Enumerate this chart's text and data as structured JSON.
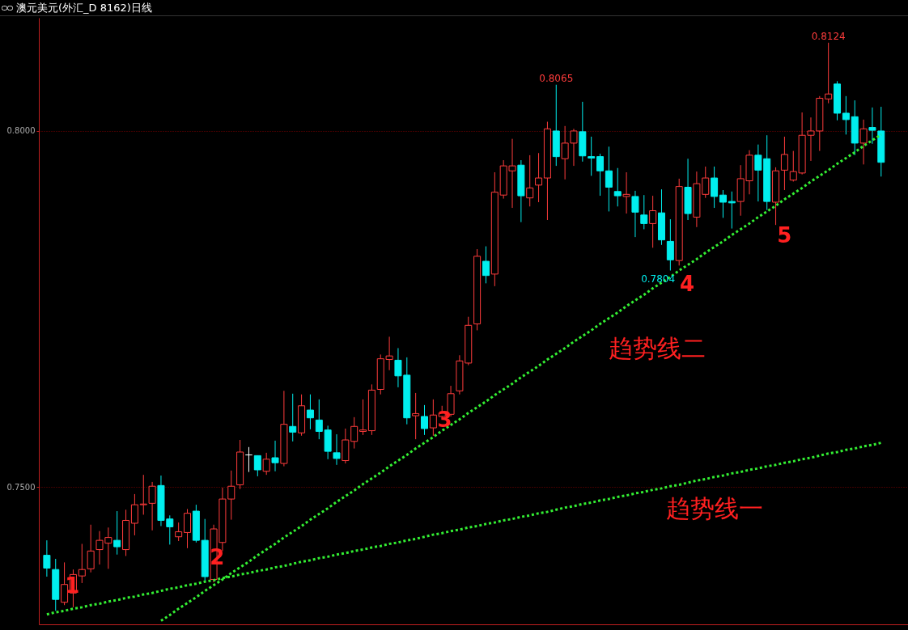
{
  "chart_data": {
    "type": "candlestick",
    "title": "澳元美元(外汇_D 8162)日线",
    "categories": [
      null,
      null,
      null,
      null,
      null,
      null,
      null,
      null,
      null,
      null,
      null,
      null,
      null,
      null,
      null,
      null,
      null,
      null,
      null,
      null,
      null,
      null,
      null,
      null,
      null,
      null,
      null,
      null,
      null,
      null,
      null,
      null,
      null,
      null,
      null,
      null,
      null,
      null,
      null,
      null,
      null,
      null,
      null,
      null,
      null,
      null,
      null,
      null,
      null,
      null,
      null,
      null,
      null,
      null,
      null,
      null,
      null,
      null,
      null,
      null,
      null,
      null,
      null,
      null,
      null,
      null,
      null,
      null,
      null,
      null,
      null,
      null,
      null,
      null,
      null,
      null,
      null,
      null,
      null,
      null,
      null,
      null,
      null,
      null,
      null,
      null,
      null,
      null,
      null,
      null,
      null,
      null,
      null,
      null,
      null,
      null
    ],
    "ohlc": [
      [
        0.7404,
        0.7425,
        0.7374,
        0.7386
      ],
      [
        0.7384,
        0.7399,
        0.7326,
        0.7342
      ],
      [
        0.7338,
        0.7394,
        0.7334,
        0.7363
      ],
      [
        0.7351,
        0.7384,
        0.7331,
        0.7377
      ],
      [
        0.7375,
        0.742,
        0.7365,
        0.7384
      ],
      [
        0.7385,
        0.7447,
        0.738,
        0.741
      ],
      [
        0.7412,
        0.7438,
        0.7391,
        0.7425
      ],
      [
        0.7421,
        0.7443,
        0.7385,
        0.7429
      ],
      [
        0.7425,
        0.7466,
        0.7405,
        0.7416
      ],
      [
        0.7412,
        0.7468,
        0.7403,
        0.7453
      ],
      [
        0.7449,
        0.749,
        0.7432,
        0.7475
      ],
      [
        0.7475,
        0.7517,
        0.7461,
        0.7476
      ],
      [
        0.7477,
        0.7507,
        0.7439,
        0.7501
      ],
      [
        0.7502,
        0.7516,
        0.7445,
        0.7453
      ],
      [
        0.7455,
        0.746,
        0.7419,
        0.7444
      ],
      [
        0.743,
        0.745,
        0.7424,
        0.7437
      ],
      [
        0.7436,
        0.7469,
        0.7414,
        0.7463
      ],
      [
        0.7466,
        0.7475,
        0.7422,
        0.7425
      ],
      [
        0.7425,
        0.7455,
        0.7368,
        0.7374
      ],
      [
        0.737,
        0.7447,
        0.7366,
        0.7441
      ],
      [
        0.7422,
        0.7499,
        0.741,
        0.7483
      ],
      [
        0.7483,
        0.7523,
        0.7454,
        0.7501
      ],
      [
        0.7503,
        0.7566,
        0.7497,
        0.7549
      ],
      [
        0.7545,
        0.7556,
        0.7521,
        0.7545
      ],
      [
        0.7544,
        0.7544,
        0.7515,
        0.7524
      ],
      [
        0.7522,
        0.7548,
        0.7517,
        0.7539
      ],
      [
        0.7541,
        0.7565,
        0.7522,
        0.7534
      ],
      [
        0.7533,
        0.7635,
        0.7529,
        0.7588
      ],
      [
        0.7585,
        0.7631,
        0.7564,
        0.7577
      ],
      [
        0.7576,
        0.763,
        0.7572,
        0.7614
      ],
      [
        0.7608,
        0.763,
        0.7581,
        0.7597
      ],
      [
        0.7594,
        0.7623,
        0.7567,
        0.7578
      ],
      [
        0.758,
        0.7586,
        0.7539,
        0.755
      ],
      [
        0.7548,
        0.7574,
        0.7531,
        0.754
      ],
      [
        0.7537,
        0.7582,
        0.7533,
        0.7566
      ],
      [
        0.7564,
        0.7598,
        0.7554,
        0.7585
      ],
      [
        0.7578,
        0.7623,
        0.7573,
        0.758
      ],
      [
        0.7579,
        0.7644,
        0.7573,
        0.7636
      ],
      [
        0.7637,
        0.7686,
        0.763,
        0.768
      ],
      [
        0.7679,
        0.7711,
        0.7664,
        0.7684
      ],
      [
        0.7678,
        0.7695,
        0.764,
        0.7656
      ],
      [
        0.7657,
        0.7682,
        0.7588,
        0.7597
      ],
      [
        0.76,
        0.7632,
        0.7567,
        0.7603
      ],
      [
        0.7599,
        0.7615,
        0.7573,
        0.7582
      ],
      [
        0.7583,
        0.7623,
        0.7572,
        0.7601
      ],
      [
        0.7599,
        0.7614,
        0.7595,
        0.7604
      ],
      [
        0.7602,
        0.7642,
        0.7599,
        0.7631
      ],
      [
        0.7635,
        0.7685,
        0.763,
        0.7677
      ],
      [
        0.7674,
        0.7739,
        0.7671,
        0.7727
      ],
      [
        0.7729,
        0.7834,
        0.772,
        0.7824
      ],
      [
        0.7817,
        0.7838,
        0.7786,
        0.7797
      ],
      [
        0.7799,
        0.7942,
        0.7782,
        0.7914
      ],
      [
        0.791,
        0.7959,
        0.7905,
        0.7951
      ],
      [
        0.7944,
        0.7989,
        0.7892,
        0.7951
      ],
      [
        0.7952,
        0.7959,
        0.7872,
        0.7909
      ],
      [
        0.7906,
        0.7966,
        0.7894,
        0.792
      ],
      [
        0.7924,
        0.7969,
        0.79,
        0.7934
      ],
      [
        0.7934,
        0.8013,
        0.7875,
        0.8003
      ],
      [
        0.8,
        0.8065,
        0.7951,
        0.7964
      ],
      [
        0.7961,
        0.8007,
        0.7932,
        0.7983
      ],
      [
        0.7983,
        0.8003,
        0.7951,
        0.8
      ],
      [
        0.7999,
        0.8041,
        0.7957,
        0.7965
      ],
      [
        0.7964,
        0.7992,
        0.7937,
        0.7962
      ],
      [
        0.7964,
        0.7968,
        0.7909,
        0.7944
      ],
      [
        0.7944,
        0.7978,
        0.7887,
        0.7921
      ],
      [
        0.7915,
        0.7948,
        0.7894,
        0.7909
      ],
      [
        0.7908,
        0.7942,
        0.7884,
        0.7911
      ],
      [
        0.7908,
        0.7916,
        0.7851,
        0.7886
      ],
      [
        0.7882,
        0.791,
        0.7862,
        0.787
      ],
      [
        0.787,
        0.7909,
        0.7836,
        0.7888
      ],
      [
        0.7885,
        0.7918,
        0.784,
        0.7847
      ],
      [
        0.7845,
        0.7876,
        0.7804,
        0.7819
      ],
      [
        0.7818,
        0.7933,
        0.7811,
        0.7922
      ],
      [
        0.7921,
        0.7961,
        0.7875,
        0.7884
      ],
      [
        0.7879,
        0.7943,
        0.7865,
        0.7926
      ],
      [
        0.7911,
        0.795,
        0.7906,
        0.7934
      ],
      [
        0.7934,
        0.795,
        0.7892,
        0.7908
      ],
      [
        0.791,
        0.7917,
        0.7878,
        0.79
      ],
      [
        0.7901,
        0.7915,
        0.7863,
        0.7899
      ],
      [
        0.7901,
        0.7952,
        0.7881,
        0.7933
      ],
      [
        0.793,
        0.7973,
        0.7911,
        0.7966
      ],
      [
        0.7966,
        0.7981,
        0.7901,
        0.7945
      ],
      [
        0.7961,
        0.7994,
        0.7889,
        0.7901
      ],
      [
        0.79,
        0.7949,
        0.7868,
        0.7944
      ],
      [
        0.7945,
        0.7992,
        0.7917,
        0.7967
      ],
      [
        0.7931,
        0.7972,
        0.7929,
        0.7943
      ],
      [
        0.7941,
        0.8026,
        0.7939,
        0.7994
      ],
      [
        0.7994,
        0.8019,
        0.7958,
        0.8
      ],
      [
        0.8,
        0.8049,
        0.7972,
        0.8046
      ],
      [
        0.8045,
        0.8124,
        0.8039,
        0.8052
      ],
      [
        0.8066,
        0.807,
        0.8015,
        0.8025
      ],
      [
        0.8025,
        0.8049,
        0.7995,
        0.8016
      ],
      [
        0.802,
        0.8043,
        0.7966,
        0.7983
      ],
      [
        0.7983,
        0.8016,
        0.7953,
        0.8003
      ],
      [
        0.8005,
        0.8033,
        0.7982,
        0.8001
      ],
      [
        0.8,
        0.8034,
        0.7936,
        0.7956
      ]
    ],
    "series": [
      {
        "type": "line",
        "color": "#33ee33",
        "values": [
          0.7321,
          0.7324,
          0.7326,
          0.7329,
          0.7331,
          0.7334,
          0.7336,
          0.7339,
          0.7341,
          0.7344,
          0.7346,
          0.7349,
          0.7351,
          0.7354,
          0.7357,
          0.7359,
          0.7362,
          0.7364,
          0.7367,
          0.7369,
          0.7372,
          0.7374,
          0.7377,
          0.7379,
          0.7382,
          0.7384,
          0.7387,
          0.7389,
          0.7392,
          0.7395,
          0.7397,
          0.74,
          0.7402,
          0.7405,
          0.7407,
          0.741,
          0.7412,
          0.7415,
          0.7417,
          0.742,
          0.7422,
          0.7425,
          0.7427,
          0.743,
          0.7433,
          0.7435,
          0.7438,
          0.744,
          0.7443,
          0.7445,
          0.7448,
          0.745,
          0.7453,
          0.7455,
          0.7458,
          0.746,
          0.7463,
          0.7465,
          0.7468,
          0.7471,
          0.7473,
          0.7476,
          0.7478,
          0.7481,
          0.7483,
          0.7486,
          0.7488,
          0.7491,
          0.7493,
          0.7496,
          0.7498,
          0.7501,
          0.7503,
          0.7506,
          0.7509,
          0.7511,
          0.7514,
          0.7516,
          0.7519,
          0.7521,
          0.7524,
          0.7526,
          0.7529,
          0.7531,
          0.7534,
          0.7536,
          0.7539,
          0.7541,
          0.7544,
          0.7547,
          0.7549,
          0.7552,
          0.7554,
          0.7557,
          0.7559,
          0.7562
        ]
      },
      {
        "type": "line",
        "color": "#33ee33",
        "values": [
          null,
          null,
          null,
          null,
          null,
          null,
          null,
          null,
          null,
          null,
          null,
          null,
          null,
          0.7312,
          0.732,
          0.7329,
          0.7337,
          0.7345,
          0.7354,
          0.7362,
          0.737,
          0.7379,
          0.7387,
          0.7395,
          0.7404,
          0.7412,
          0.742,
          0.7429,
          0.7437,
          0.7445,
          0.7454,
          0.7462,
          0.747,
          0.7479,
          0.7487,
          0.7495,
          0.7504,
          0.7512,
          0.752,
          0.7529,
          0.7537,
          0.7545,
          0.7554,
          0.7562,
          0.757,
          0.7579,
          0.7587,
          0.7595,
          0.7604,
          0.7612,
          0.762,
          0.7629,
          0.7637,
          0.7645,
          0.7654,
          0.7662,
          0.767,
          0.7679,
          0.7687,
          0.7695,
          0.7704,
          0.7712,
          0.772,
          0.7729,
          0.7737,
          0.7745,
          0.7754,
          0.7762,
          0.777,
          0.7779,
          0.7787,
          0.7795,
          0.7804,
          0.7812,
          0.782,
          0.7829,
          0.7837,
          0.7845,
          0.7854,
          0.7862,
          0.787,
          0.7879,
          0.7887,
          0.7895,
          0.7904,
          0.7912,
          0.792,
          0.7929,
          0.7937,
          0.7945,
          0.7954,
          0.7962,
          0.797,
          0.7979,
          0.7987,
          0.7995
        ]
      }
    ],
    "line_style": "dotted",
    "ylim": [
      0.7307,
      0.8159
    ],
    "yticks": [
      {
        "value": 0.75,
        "label": "0.7500"
      },
      {
        "value": 0.8,
        "label": "0.8000"
      }
    ],
    "grid": "y",
    "tick_labels": "y",
    "annotations": [
      "1",
      "2",
      "3",
      "4",
      "5",
      "趋势线二",
      "趋势线一",
      "0.8065",
      "0.8124",
      "0.7804"
    ]
  }
}
